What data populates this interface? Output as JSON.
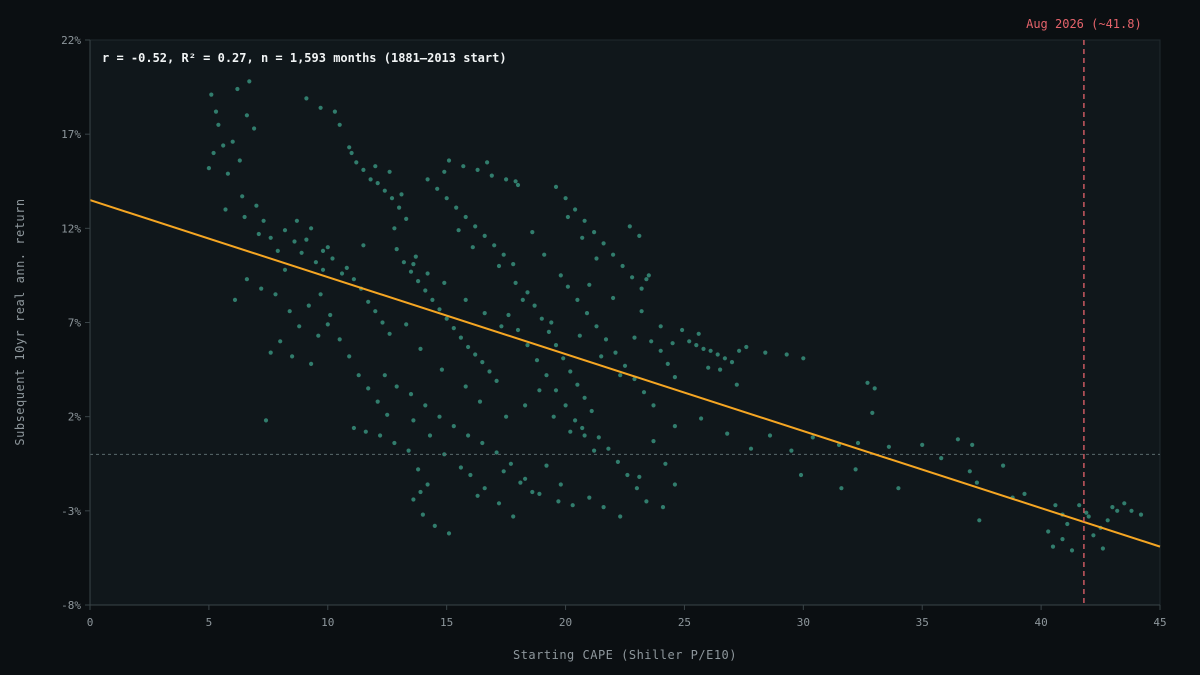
{
  "chart_data": {
    "type": "scatter",
    "title": "",
    "annotation": "r = -0.52, R² = 0.27, n = 1,593 months (1881–2013 start)",
    "xlabel": "Starting CAPE (Shiller P/E10)",
    "ylabel": "Subsequent 10yr real ann. return",
    "xlim": [
      0,
      45
    ],
    "ylim": [
      -8,
      22
    ],
    "x_ticks": [
      {
        "value": 0,
        "label": "0"
      },
      {
        "value": 5,
        "label": "5"
      },
      {
        "value": 10,
        "label": "10"
      },
      {
        "value": 15,
        "label": "15"
      },
      {
        "value": 20,
        "label": "20"
      },
      {
        "value": 25,
        "label": "25"
      },
      {
        "value": 30,
        "label": "30"
      },
      {
        "value": 35,
        "label": "35"
      },
      {
        "value": 40,
        "label": "40"
      },
      {
        "value": 45,
        "label": "45"
      }
    ],
    "y_ticks": [
      {
        "value": -8,
        "label": "-8%"
      },
      {
        "value": -3,
        "label": "-3%"
      },
      {
        "value": 2,
        "label": "2%"
      },
      {
        "value": 7,
        "label": "7%"
      },
      {
        "value": 12,
        "label": "12%"
      },
      {
        "value": 17,
        "label": "17%"
      },
      {
        "value": 22,
        "label": "22%"
      }
    ],
    "grid": false,
    "zero_line": {
      "y": 0
    },
    "regression_line": {
      "x": [
        0,
        45
      ],
      "y": [
        13.5,
        -4.9
      ],
      "color": "#f5a623"
    },
    "marker_line": {
      "x": 41.8,
      "label": "Aug 2026 (~41.8)",
      "color": "#e5636b"
    },
    "point_color": "#3fa58e",
    "points": [
      [
        5.1,
        19.1
      ],
      [
        5.3,
        18.2
      ],
      [
        5.6,
        16.4
      ],
      [
        5.2,
        16.0
      ],
      [
        6.0,
        16.6
      ],
      [
        6.3,
        15.6
      ],
      [
        6.6,
        18.0
      ],
      [
        6.9,
        17.3
      ],
      [
        5.8,
        14.9
      ],
      [
        6.4,
        13.7
      ],
      [
        6.5,
        12.6
      ],
      [
        7.0,
        13.2
      ],
      [
        7.3,
        12.4
      ],
      [
        7.6,
        11.5
      ],
      [
        7.9,
        10.8
      ],
      [
        8.2,
        11.9
      ],
      [
        8.6,
        11.3
      ],
      [
        8.9,
        10.7
      ],
      [
        9.1,
        11.4
      ],
      [
        9.5,
        10.2
      ],
      [
        9.8,
        9.8
      ],
      [
        6.6,
        9.3
      ],
      [
        7.2,
        8.8
      ],
      [
        6.1,
        8.2
      ],
      [
        7.8,
        8.5
      ],
      [
        8.4,
        7.6
      ],
      [
        8.8,
        6.8
      ],
      [
        9.2,
        7.9
      ],
      [
        9.6,
        6.3
      ],
      [
        10.0,
        6.9
      ],
      [
        8.0,
        6.0
      ],
      [
        7.6,
        5.4
      ],
      [
        8.5,
        5.2
      ],
      [
        9.3,
        4.8
      ],
      [
        7.4,
        1.8
      ],
      [
        9.8,
        10.8
      ],
      [
        10.2,
        10.4
      ],
      [
        10.6,
        9.6
      ],
      [
        10.8,
        9.9
      ],
      [
        11.1,
        9.3
      ],
      [
        11.4,
        8.8
      ],
      [
        11.7,
        8.1
      ],
      [
        12.0,
        7.6
      ],
      [
        12.3,
        7.0
      ],
      [
        12.6,
        6.4
      ],
      [
        10.3,
        18.2
      ],
      [
        10.9,
        16.3
      ],
      [
        11.2,
        15.5
      ],
      [
        11.5,
        15.1
      ],
      [
        11.8,
        14.6
      ],
      [
        12.1,
        14.4
      ],
      [
        12.4,
        14.0
      ],
      [
        12.7,
        13.6
      ],
      [
        13.0,
        13.1
      ],
      [
        13.3,
        12.5
      ],
      [
        9.7,
        8.5
      ],
      [
        10.1,
        7.4
      ],
      [
        10.5,
        6.1
      ],
      [
        10.9,
        5.2
      ],
      [
        11.3,
        4.2
      ],
      [
        11.7,
        3.5
      ],
      [
        12.1,
        2.8
      ],
      [
        12.5,
        2.1
      ],
      [
        11.1,
        1.4
      ],
      [
        11.6,
        1.2
      ],
      [
        12.2,
        1.0
      ],
      [
        12.8,
        0.6
      ],
      [
        13.4,
        0.2
      ],
      [
        13.8,
        -0.8
      ],
      [
        14.2,
        -1.6
      ],
      [
        13.6,
        -2.4
      ],
      [
        14.0,
        -3.2
      ],
      [
        14.5,
        -3.8
      ],
      [
        15.1,
        -4.2
      ],
      [
        13.9,
        -2.0
      ],
      [
        12.9,
        10.9
      ],
      [
        13.2,
        10.2
      ],
      [
        13.5,
        9.7
      ],
      [
        13.8,
        9.2
      ],
      [
        14.1,
        8.7
      ],
      [
        14.4,
        8.2
      ],
      [
        14.7,
        7.7
      ],
      [
        15.0,
        7.2
      ],
      [
        15.3,
        6.7
      ],
      [
        15.6,
        6.2
      ],
      [
        15.9,
        5.7
      ],
      [
        16.2,
        5.3
      ],
      [
        16.5,
        4.9
      ],
      [
        16.8,
        4.4
      ],
      [
        17.1,
        3.9
      ],
      [
        14.2,
        14.6
      ],
      [
        14.6,
        14.1
      ],
      [
        15.0,
        13.6
      ],
      [
        15.4,
        13.1
      ],
      [
        15.8,
        12.6
      ],
      [
        16.2,
        12.1
      ],
      [
        16.6,
        11.6
      ],
      [
        17.0,
        11.1
      ],
      [
        17.4,
        10.6
      ],
      [
        17.8,
        10.1
      ],
      [
        15.1,
        15.6
      ],
      [
        15.7,
        15.3
      ],
      [
        16.3,
        15.1
      ],
      [
        16.9,
        14.8
      ],
      [
        17.5,
        14.6
      ],
      [
        18.0,
        14.3
      ],
      [
        13.5,
        3.2
      ],
      [
        14.1,
        2.6
      ],
      [
        14.7,
        2.0
      ],
      [
        15.3,
        1.5
      ],
      [
        15.9,
        1.0
      ],
      [
        16.5,
        0.6
      ],
      [
        17.1,
        0.1
      ],
      [
        17.7,
        -0.5
      ],
      [
        18.3,
        -1.3
      ],
      [
        18.9,
        -2.1
      ],
      [
        16.0,
        -1.1
      ],
      [
        16.6,
        -1.8
      ],
      [
        17.2,
        -2.6
      ],
      [
        17.8,
        -3.3
      ],
      [
        18.4,
        8.6
      ],
      [
        18.7,
        7.9
      ],
      [
        19.0,
        7.2
      ],
      [
        19.3,
        6.5
      ],
      [
        19.6,
        5.8
      ],
      [
        19.9,
        5.1
      ],
      [
        20.2,
        4.4
      ],
      [
        20.5,
        3.7
      ],
      [
        20.8,
        3.0
      ],
      [
        21.1,
        2.3
      ],
      [
        17.6,
        7.4
      ],
      [
        18.0,
        6.6
      ],
      [
        18.4,
        5.8
      ],
      [
        18.8,
        5.0
      ],
      [
        19.2,
        4.2
      ],
      [
        19.6,
        3.4
      ],
      [
        20.0,
        2.6
      ],
      [
        20.4,
        1.8
      ],
      [
        20.8,
        1.0
      ],
      [
        21.2,
        0.2
      ],
      [
        19.6,
        14.2
      ],
      [
        20.0,
        13.6
      ],
      [
        20.4,
        13.0
      ],
      [
        20.8,
        12.4
      ],
      [
        21.2,
        11.8
      ],
      [
        21.6,
        11.2
      ],
      [
        22.0,
        10.6
      ],
      [
        22.4,
        10.0
      ],
      [
        22.8,
        9.4
      ],
      [
        23.2,
        8.8
      ],
      [
        20.1,
        8.9
      ],
      [
        20.5,
        8.2
      ],
      [
        20.9,
        7.5
      ],
      [
        21.3,
        6.8
      ],
      [
        21.7,
        6.1
      ],
      [
        22.1,
        5.4
      ],
      [
        22.5,
        4.7
      ],
      [
        22.9,
        4.0
      ],
      [
        23.3,
        3.3
      ],
      [
        23.7,
        2.6
      ],
      [
        21.4,
        0.9
      ],
      [
        21.8,
        0.3
      ],
      [
        22.2,
        -0.4
      ],
      [
        22.6,
        -1.1
      ],
      [
        23.0,
        -1.8
      ],
      [
        23.4,
        -2.5
      ],
      [
        21.0,
        -2.3
      ],
      [
        21.6,
        -2.8
      ],
      [
        22.3,
        -3.3
      ],
      [
        23.1,
        -1.2
      ],
      [
        19.8,
        -1.6
      ],
      [
        20.3,
        -2.7
      ],
      [
        18.6,
        -2.0
      ],
      [
        19.2,
        -0.6
      ],
      [
        20.7,
        1.4
      ],
      [
        22.7,
        12.1
      ],
      [
        23.1,
        11.6
      ],
      [
        23.5,
        9.5
      ],
      [
        23.2,
        7.6
      ],
      [
        23.6,
        6.0
      ],
      [
        24.0,
        5.5
      ],
      [
        24.3,
        4.8
      ],
      [
        24.6,
        4.1
      ],
      [
        24.9,
        6.6
      ],
      [
        25.2,
        6.0
      ],
      [
        25.5,
        5.8
      ],
      [
        25.8,
        5.6
      ],
      [
        26.1,
        5.5
      ],
      [
        26.4,
        5.3
      ],
      [
        26.7,
        5.1
      ],
      [
        27.0,
        4.9
      ],
      [
        27.3,
        5.5
      ],
      [
        27.6,
        5.7
      ],
      [
        25.6,
        6.4
      ],
      [
        26.0,
        4.6
      ],
      [
        26.5,
        4.5
      ],
      [
        27.2,
        3.7
      ],
      [
        28.4,
        5.4
      ],
      [
        29.3,
        5.3
      ],
      [
        30.0,
        5.1
      ],
      [
        24.2,
        -0.5
      ],
      [
        24.6,
        -1.6
      ],
      [
        24.1,
        -2.8
      ],
      [
        23.7,
        0.7
      ],
      [
        24.6,
        1.5
      ],
      [
        25.7,
        1.9
      ],
      [
        26.8,
        1.1
      ],
      [
        27.8,
        0.3
      ],
      [
        28.6,
        1.0
      ],
      [
        29.5,
        0.2
      ],
      [
        29.9,
        -1.1
      ],
      [
        30.4,
        0.9
      ],
      [
        31.5,
        0.5
      ],
      [
        32.3,
        0.6
      ],
      [
        32.7,
        3.8
      ],
      [
        33.0,
        3.5
      ],
      [
        32.9,
        2.2
      ],
      [
        32.2,
        -0.8
      ],
      [
        31.6,
        -1.8
      ],
      [
        33.6,
        0.4
      ],
      [
        34.0,
        -1.8
      ],
      [
        35.0,
        0.5
      ],
      [
        35.8,
        -0.2
      ],
      [
        36.5,
        0.8
      ],
      [
        37.1,
        0.5
      ],
      [
        37.3,
        -1.5
      ],
      [
        37.0,
        -0.9
      ],
      [
        37.4,
        -3.5
      ],
      [
        38.8,
        -2.3
      ],
      [
        39.3,
        -2.1
      ],
      [
        38.4,
        -0.6
      ],
      [
        40.3,
        -4.1
      ],
      [
        40.5,
        -4.9
      ],
      [
        40.9,
        -3.2
      ],
      [
        41.3,
        -5.1
      ],
      [
        41.6,
        -2.7
      ],
      [
        41.9,
        -3.1
      ],
      [
        42.2,
        -4.3
      ],
      [
        42.5,
        -3.9
      ],
      [
        42.8,
        -3.5
      ],
      [
        43.2,
        -3.0
      ],
      [
        43.5,
        -2.6
      ],
      [
        43.8,
        -3.0
      ],
      [
        44.2,
        -3.2
      ],
      [
        42.6,
        -5.0
      ],
      [
        41.1,
        -3.7
      ],
      [
        42.0,
        -3.3
      ],
      [
        43.0,
        -2.8
      ],
      [
        40.6,
        -2.7
      ],
      [
        40.9,
        -4.5
      ],
      [
        6.2,
        19.4
      ],
      [
        6.7,
        19.8
      ],
      [
        5.4,
        17.5
      ],
      [
        5.0,
        15.2
      ],
      [
        5.7,
        13.0
      ],
      [
        7.1,
        11.7
      ],
      [
        9.1,
        18.9
      ],
      [
        9.7,
        18.4
      ],
      [
        10.5,
        17.5
      ],
      [
        11.0,
        16.0
      ],
      [
        12.0,
        15.3
      ],
      [
        12.6,
        15.0
      ],
      [
        13.1,
        13.8
      ],
      [
        14.9,
        15.0
      ],
      [
        16.7,
        15.5
      ],
      [
        17.9,
        14.5
      ],
      [
        10.0,
        11.0
      ],
      [
        9.3,
        12.0
      ],
      [
        8.7,
        12.4
      ],
      [
        8.2,
        9.8
      ],
      [
        11.5,
        11.1
      ],
      [
        12.8,
        12.0
      ],
      [
        13.7,
        10.5
      ],
      [
        15.5,
        11.9
      ],
      [
        16.1,
        11.0
      ],
      [
        17.2,
        10.0
      ],
      [
        18.6,
        11.8
      ],
      [
        19.1,
        10.6
      ],
      [
        19.8,
        9.5
      ],
      [
        21.0,
        9.0
      ],
      [
        13.3,
        6.9
      ],
      [
        13.9,
        5.6
      ],
      [
        14.8,
        4.5
      ],
      [
        15.8,
        3.6
      ],
      [
        16.4,
        2.8
      ],
      [
        17.5,
        2.0
      ],
      [
        18.3,
        2.6
      ],
      [
        18.9,
        3.4
      ],
      [
        19.5,
        2.0
      ],
      [
        20.2,
        1.2
      ],
      [
        12.4,
        4.2
      ],
      [
        12.9,
        3.6
      ],
      [
        13.6,
        1.8
      ],
      [
        14.3,
        1.0
      ],
      [
        14.9,
        0.0
      ],
      [
        15.6,
        -0.7
      ],
      [
        16.3,
        -2.2
      ],
      [
        17.4,
        -0.9
      ],
      [
        18.1,
        -1.5
      ],
      [
        19.7,
        -2.5
      ],
      [
        17.3,
        6.8
      ],
      [
        16.6,
        7.5
      ],
      [
        15.8,
        8.2
      ],
      [
        14.9,
        9.1
      ],
      [
        14.2,
        9.6
      ],
      [
        13.6,
        10.1
      ],
      [
        17.9,
        9.1
      ],
      [
        18.2,
        8.2
      ],
      [
        19.4,
        7.0
      ],
      [
        20.6,
        6.3
      ],
      [
        21.5,
        5.2
      ],
      [
        22.3,
        4.2
      ],
      [
        22.9,
        6.2
      ],
      [
        22.0,
        8.3
      ],
      [
        21.3,
        10.4
      ],
      [
        20.7,
        11.5
      ],
      [
        20.1,
        12.6
      ],
      [
        23.4,
        9.3
      ],
      [
        24.0,
        6.8
      ],
      [
        24.5,
        5.9
      ]
    ]
  }
}
